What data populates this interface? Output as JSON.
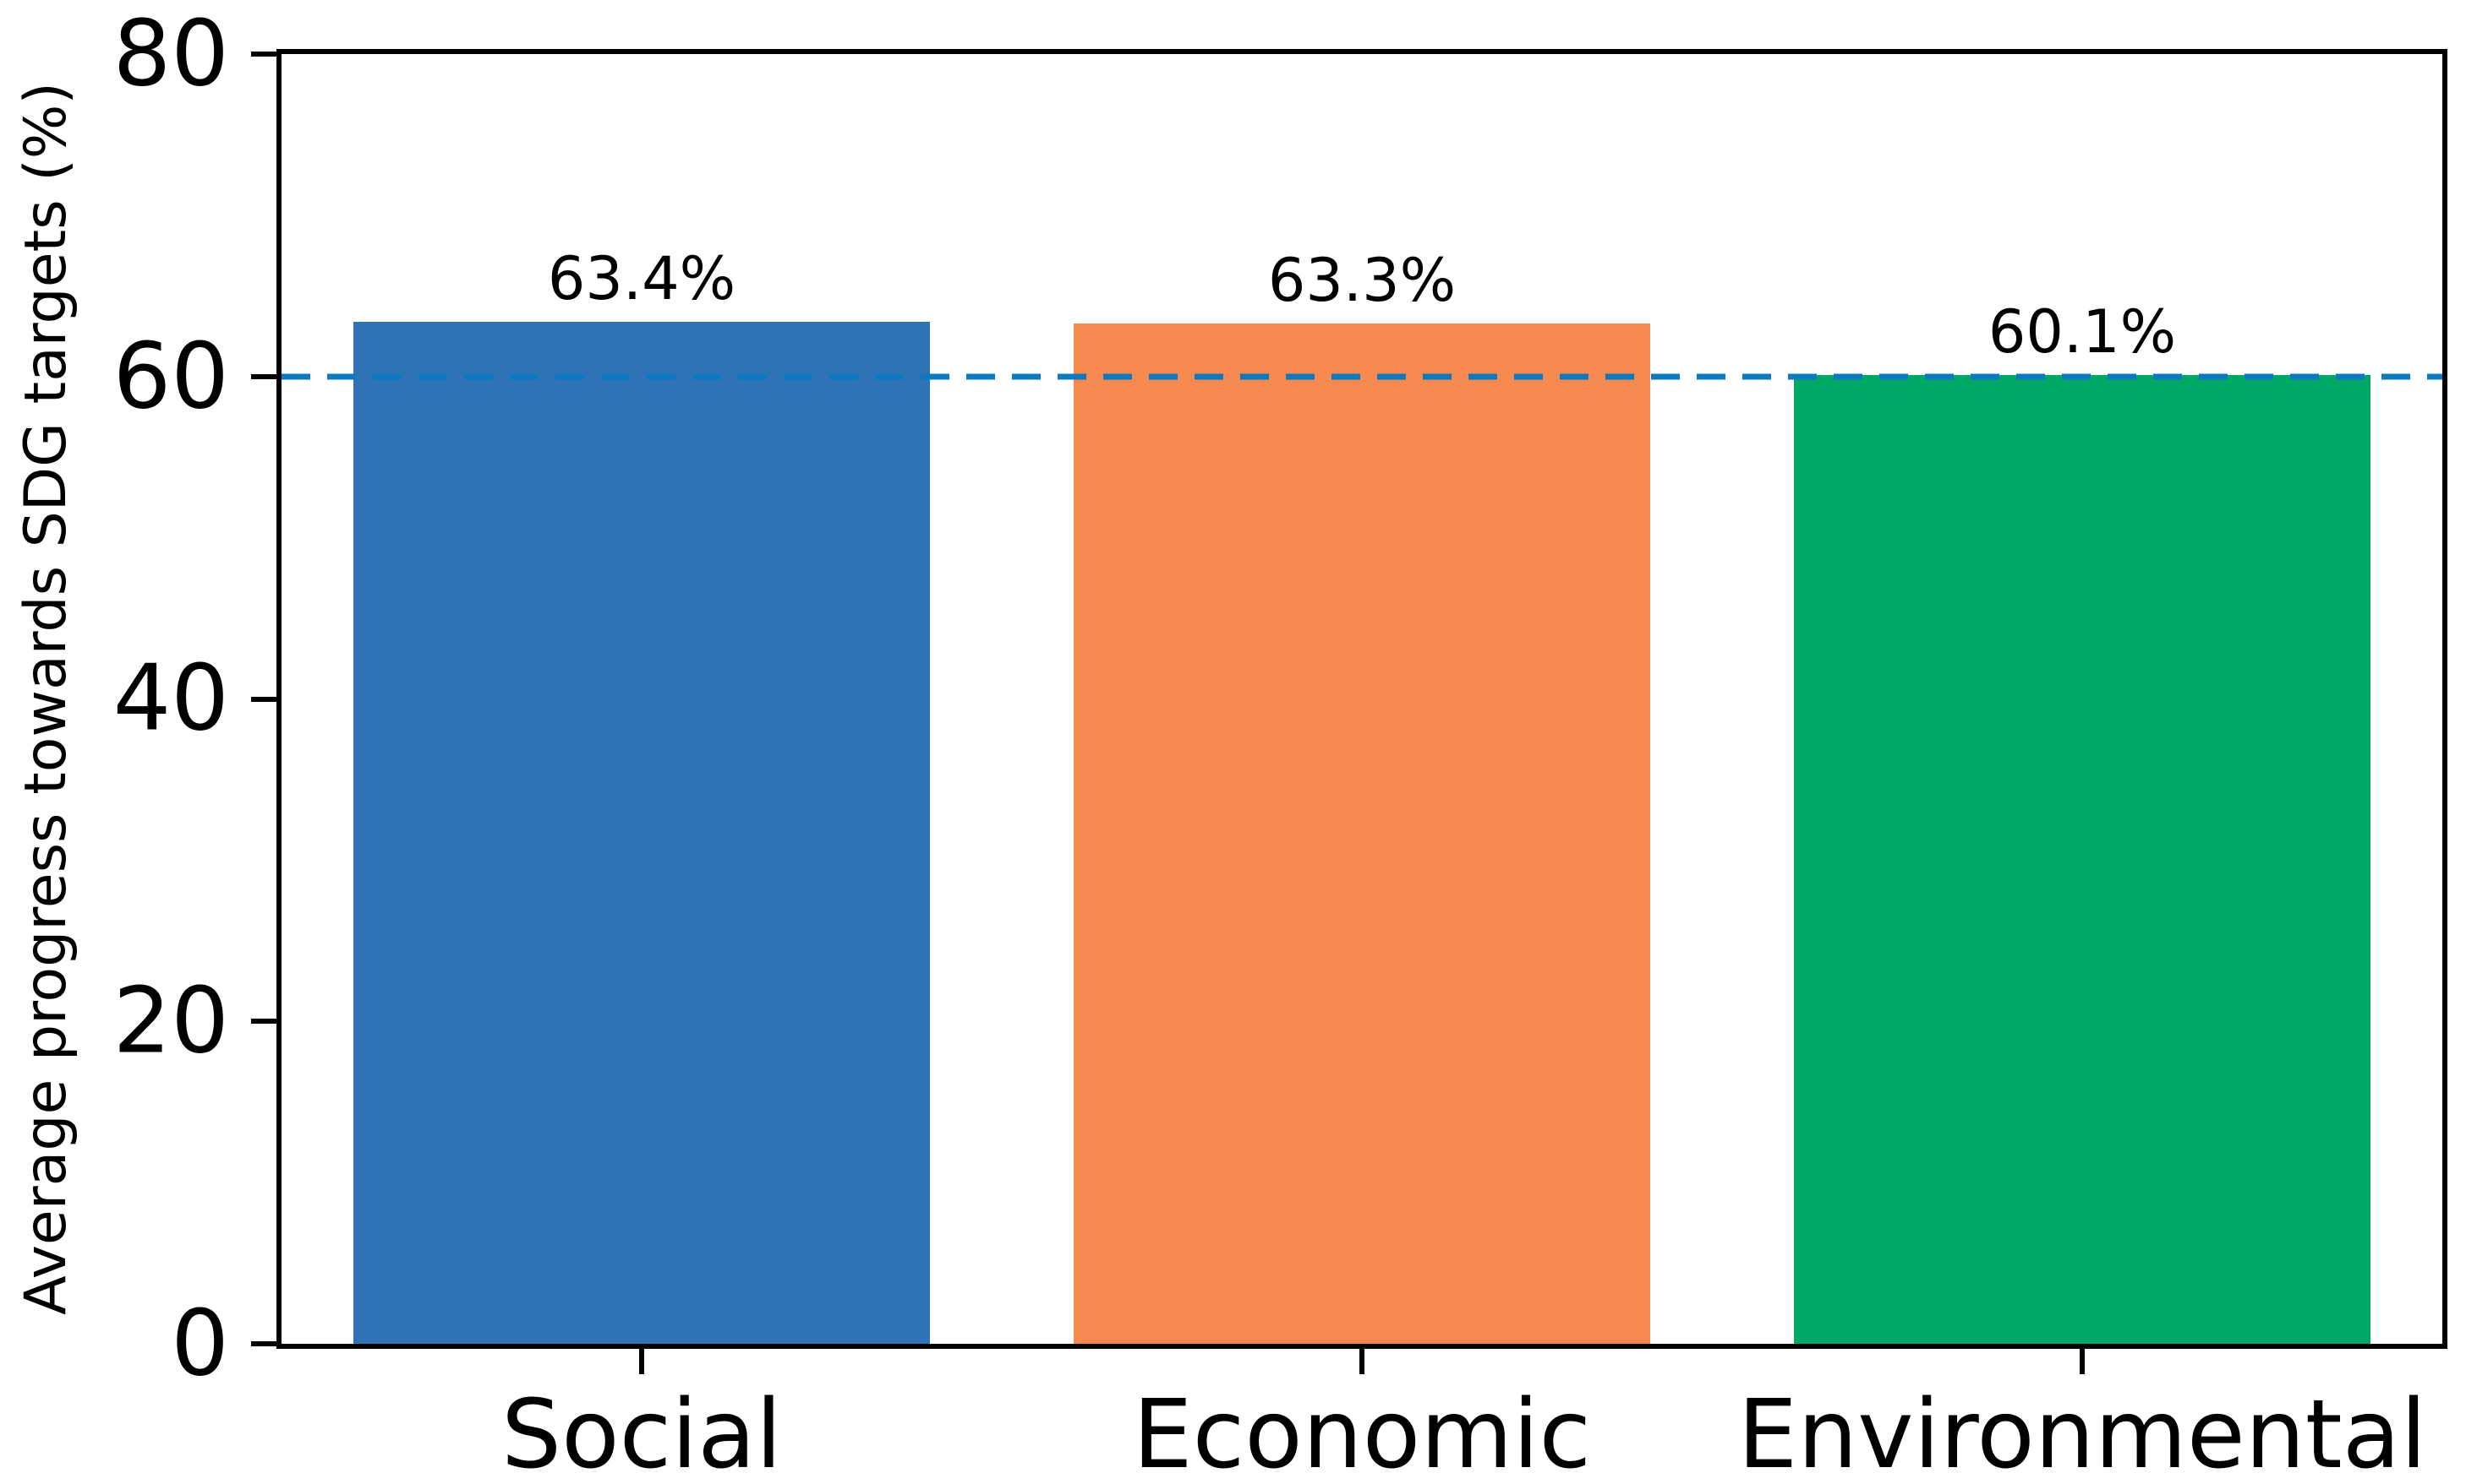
{
  "chart_data": {
    "type": "bar",
    "title": "",
    "xlabel": "",
    "ylabel": "Average progress towards SDG targets (%)",
    "categories": [
      "Social",
      "Economic",
      "Environmental"
    ],
    "values": [
      63.4,
      63.3,
      60.1
    ],
    "value_labels": [
      "63.4%",
      "63.3%",
      "60.1%"
    ],
    "bar_colors": [
      "#2E73B5",
      "#F5894F",
      "#00A765"
    ],
    "ylim": [
      0,
      80
    ],
    "yticks": [
      0,
      20,
      40,
      60,
      80
    ],
    "reference_line": {
      "y": 60,
      "color": "#0D7ABF",
      "style": "dashed"
    },
    "bar_width_fraction": 0.8,
    "grid": false,
    "legend_position": "none"
  }
}
